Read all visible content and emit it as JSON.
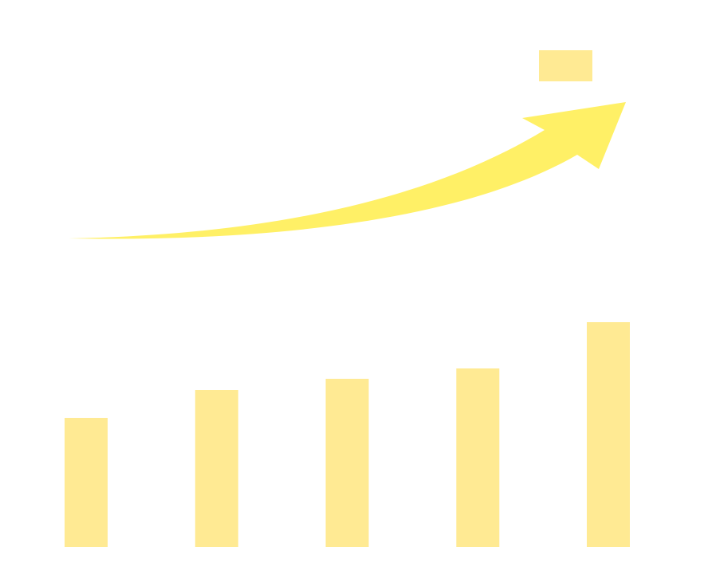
{
  "chart_data": {
    "type": "bar",
    "categories": [
      "",
      "",
      "",
      "",
      ""
    ],
    "values": [
      162,
      197,
      211,
      224,
      282
    ],
    "ylim": [
      0,
      300
    ],
    "grid": false,
    "legend": "none",
    "title": "",
    "xlabel": "",
    "ylabel": ""
  },
  "colors": {
    "bar": "#FFEA93",
    "arrow": "#FFF066",
    "marker": "#FFEA93",
    "background": "#FFFFFF"
  },
  "decorations": {
    "trend_arrow": "rising-trend-arrow-icon",
    "top_marker": "marker-block-icon"
  }
}
